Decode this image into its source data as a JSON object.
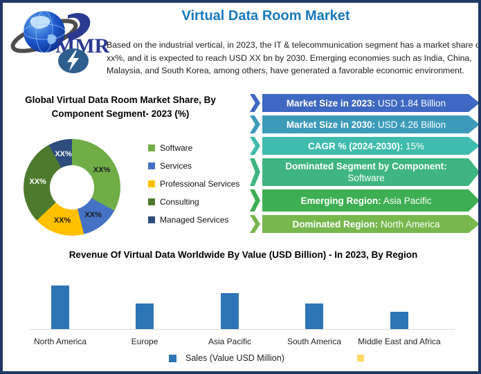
{
  "page": {
    "title": "Virtual Data Room Market",
    "title_color": "#1779BE",
    "border_color": "#1F3864",
    "logo_text": "MMR",
    "intro": "Based on the industrial vertical, in 2023, the IT & telecommunication segment has a market share of xx%, and it is expected to reach USD XX bn by 2030. Emerging economies such as India, China, Malaysia, and South Korea, among others, have generated a favorable economic environment."
  },
  "stats": {
    "banners": [
      {
        "label": "Market Size in 2023:",
        "value": "USD 1.84 Billion",
        "color": "#3E68C1"
      },
      {
        "label": "Market Size in 2030:",
        "value": "USD 4.26 Billion",
        "color": "#3D9BBA"
      },
      {
        "label": "CAGR % (2024-2030):",
        "value": "15%",
        "color": "#3FBCAD"
      },
      {
        "label": "Dominated Segment by Component:",
        "value": "Software",
        "color": "#3FB581"
      },
      {
        "label": "Emerging Region:",
        "value": "Asia Pacific",
        "color": "#3EAE52"
      },
      {
        "label": "Dominated Region:",
        "value": "North America",
        "color": "#77B74E"
      }
    ]
  },
  "chart_data": [
    {
      "type": "pie",
      "subtype": "donut",
      "title": "Global Virtual Data Room Market Share, By Component Segment- 2023 (%)",
      "legend_position": "right",
      "slices": [
        {
          "label": "Software",
          "value_pct": 33,
          "data_label": "XX%",
          "color": "#70AD47",
          "label_color": "#1a1a1a"
        },
        {
          "label": "Services",
          "value_pct": 13,
          "data_label": "XX%",
          "color": "#4472C4",
          "label_color": "#1a1a1a"
        },
        {
          "label": "Professional Services",
          "value_pct": 17,
          "data_label": "XX%",
          "color": "#FFC000",
          "label_color": "#1a1a1a"
        },
        {
          "label": "Consulting",
          "value_pct": 29,
          "data_label": "XX%",
          "color": "#4E7A2E",
          "label_color": "#ffffff"
        },
        {
          "label": "Managed Services",
          "value_pct": 8,
          "data_label": "XX%",
          "color": "#2E4D7E",
          "label_color": "#ffffff"
        }
      ]
    },
    {
      "type": "bar",
      "title": "Revenue Of Virtual Data Worldwide By Value (USD Billion) - In 2023, By Region",
      "categories": [
        "North America",
        "Europe",
        "Asia Pacific",
        "South America",
        "Middle East and Africa"
      ],
      "values": [
        60,
        35,
        50,
        35,
        24
      ],
      "ylim": [
        0,
        70
      ],
      "grid": false,
      "value_axis_shown": false,
      "bar_color": "#2E75B6",
      "legend": [
        {
          "label": "Sales (Value USD Million)",
          "color": "#2E75B6"
        },
        {
          "label": "",
          "color": "#FFD966"
        }
      ],
      "legend_position": "bottom"
    }
  ]
}
